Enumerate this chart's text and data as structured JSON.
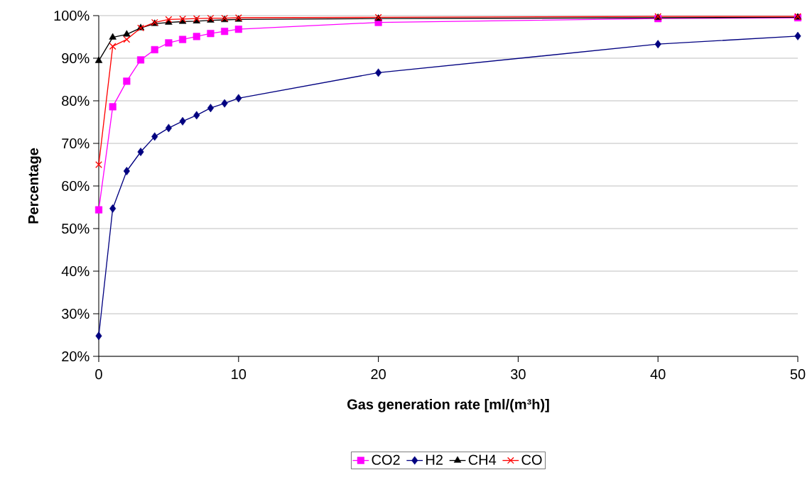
{
  "chart_data": {
    "type": "line",
    "xlabel": "Gas generation rate [ml/(m³h)]",
    "ylabel": "Percentage",
    "x": [
      0,
      1,
      2,
      3,
      4,
      5,
      6,
      7,
      8,
      9,
      10,
      20,
      40,
      50
    ],
    "series": [
      {
        "name": "CO2",
        "color": "#ff00ff",
        "marker": "square",
        "values": [
          54.4,
          78.6,
          84.6,
          89.6,
          92.0,
          93.6,
          94.4,
          95.1,
          95.8,
          96.3,
          96.8,
          98.4,
          99.3,
          99.5
        ]
      },
      {
        "name": "H2",
        "color": "#000080",
        "marker": "diamond",
        "values": [
          24.8,
          54.7,
          63.5,
          68.0,
          71.6,
          73.6,
          75.2,
          76.6,
          78.3,
          79.4,
          80.6,
          86.6,
          93.3,
          95.2
        ]
      },
      {
        "name": "CH4",
        "color": "#000000",
        "marker": "triangle",
        "values": [
          89.4,
          94.9,
          95.6,
          97.1,
          98.1,
          98.4,
          98.6,
          98.7,
          98.9,
          99.0,
          99.1,
          99.3,
          99.5,
          99.6
        ]
      },
      {
        "name": "CO",
        "color": "#ff0000",
        "marker": "cross",
        "values": [
          65.0,
          92.8,
          94.4,
          97.1,
          98.4,
          99.1,
          99.2,
          99.3,
          99.4,
          99.4,
          99.5,
          99.6,
          99.8,
          99.8
        ]
      }
    ],
    "xlim": [
      0,
      50
    ],
    "xticks": [
      0,
      10,
      20,
      30,
      40,
      50
    ],
    "ylim": [
      20,
      100
    ],
    "yticks": [
      {
        "value": 20,
        "label": "20%"
      },
      {
        "value": 30,
        "label": "30%"
      },
      {
        "value": 40,
        "label": "40%"
      },
      {
        "value": 50,
        "label": "50%"
      },
      {
        "value": 60,
        "label": "60%"
      },
      {
        "value": 70,
        "label": "70%"
      },
      {
        "value": 80,
        "label": "80%"
      },
      {
        "value": 90,
        "label": "90%"
      },
      {
        "value": 100,
        "label": "100%"
      }
    ],
    "grid": "y",
    "legend": "bottom"
  }
}
